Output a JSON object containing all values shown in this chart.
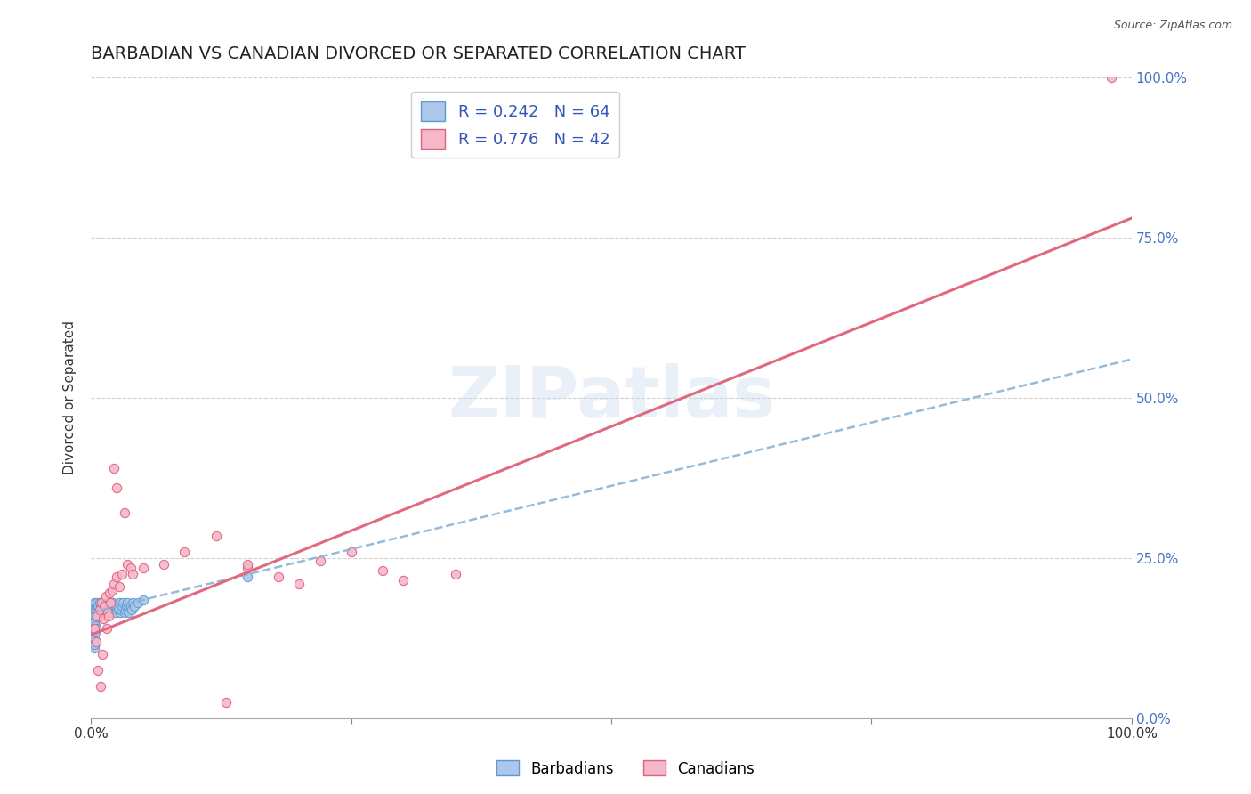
{
  "title": "BARBADIAN VS CANADIAN DIVORCED OR SEPARATED CORRELATION CHART",
  "source": "Source: ZipAtlas.com",
  "ylabel": "Divorced or Separated",
  "xlim": [
    0,
    1.0
  ],
  "ylim": [
    0,
    1.0
  ],
  "ytick_positions": [
    0.0,
    0.25,
    0.5,
    0.75,
    1.0
  ],
  "ytick_labels_right": [
    "0.0%",
    "25.0%",
    "50.0%",
    "75.0%",
    "100.0%"
  ],
  "xtick_positions": [
    0.0,
    0.25,
    0.5,
    0.75,
    1.0
  ],
  "xtick_labels": [
    "0.0%",
    "",
    "",
    "",
    "100.0%"
  ],
  "watermark": "ZIPatlas",
  "barbadian_color_fill": "#aec6e8",
  "barbadian_color_edge": "#5b9bd5",
  "canadian_color_fill": "#f4b8c8",
  "canadian_color_edge": "#e06080",
  "barbadian_line_color": "#8ab4d8",
  "canadian_line_color": "#e06880",
  "barbadian_scatter": [
    [
      0.001,
      0.17
    ],
    [
      0.002,
      0.175
    ],
    [
      0.002,
      0.165
    ],
    [
      0.003,
      0.18
    ],
    [
      0.003,
      0.16
    ],
    [
      0.004,
      0.17
    ],
    [
      0.004,
      0.155
    ],
    [
      0.005,
      0.175
    ],
    [
      0.005,
      0.165
    ],
    [
      0.006,
      0.18
    ],
    [
      0.006,
      0.16
    ],
    [
      0.007,
      0.175
    ],
    [
      0.007,
      0.165
    ],
    [
      0.008,
      0.18
    ],
    [
      0.008,
      0.16
    ],
    [
      0.009,
      0.175
    ],
    [
      0.009,
      0.165
    ],
    [
      0.01,
      0.17
    ],
    [
      0.01,
      0.18
    ],
    [
      0.011,
      0.175
    ],
    [
      0.012,
      0.17
    ],
    [
      0.013,
      0.165
    ],
    [
      0.014,
      0.175
    ],
    [
      0.015,
      0.18
    ],
    [
      0.016,
      0.17
    ],
    [
      0.017,
      0.175
    ],
    [
      0.018,
      0.165
    ],
    [
      0.019,
      0.17
    ],
    [
      0.02,
      0.175
    ],
    [
      0.021,
      0.18
    ],
    [
      0.022,
      0.17
    ],
    [
      0.023,
      0.175
    ],
    [
      0.024,
      0.165
    ],
    [
      0.025,
      0.175
    ],
    [
      0.026,
      0.17
    ],
    [
      0.027,
      0.18
    ],
    [
      0.028,
      0.165
    ],
    [
      0.029,
      0.17
    ],
    [
      0.03,
      0.175
    ],
    [
      0.031,
      0.18
    ],
    [
      0.032,
      0.165
    ],
    [
      0.033,
      0.17
    ],
    [
      0.034,
      0.175
    ],
    [
      0.035,
      0.18
    ],
    [
      0.036,
      0.17
    ],
    [
      0.037,
      0.165
    ],
    [
      0.038,
      0.175
    ],
    [
      0.039,
      0.17
    ],
    [
      0.04,
      0.18
    ],
    [
      0.042,
      0.175
    ],
    [
      0.045,
      0.18
    ],
    [
      0.05,
      0.185
    ],
    [
      0.001,
      0.13
    ],
    [
      0.002,
      0.12
    ],
    [
      0.003,
      0.125
    ],
    [
      0.004,
      0.135
    ],
    [
      0.001,
      0.145
    ],
    [
      0.002,
      0.14
    ],
    [
      0.003,
      0.15
    ],
    [
      0.004,
      0.145
    ],
    [
      0.005,
      0.14
    ],
    [
      0.003,
      0.11
    ],
    [
      0.003,
      0.115
    ],
    [
      0.15,
      0.22
    ]
  ],
  "canadian_scatter": [
    [
      0.003,
      0.14
    ],
    [
      0.005,
      0.12
    ],
    [
      0.006,
      0.16
    ],
    [
      0.007,
      0.075
    ],
    [
      0.008,
      0.17
    ],
    [
      0.009,
      0.05
    ],
    [
      0.01,
      0.18
    ],
    [
      0.011,
      0.1
    ],
    [
      0.012,
      0.155
    ],
    [
      0.013,
      0.175
    ],
    [
      0.014,
      0.19
    ],
    [
      0.015,
      0.14
    ],
    [
      0.016,
      0.165
    ],
    [
      0.017,
      0.16
    ],
    [
      0.018,
      0.195
    ],
    [
      0.019,
      0.18
    ],
    [
      0.02,
      0.2
    ],
    [
      0.022,
      0.21
    ],
    [
      0.025,
      0.22
    ],
    [
      0.027,
      0.205
    ],
    [
      0.03,
      0.225
    ],
    [
      0.032,
      0.32
    ],
    [
      0.035,
      0.24
    ],
    [
      0.038,
      0.235
    ],
    [
      0.04,
      0.225
    ],
    [
      0.05,
      0.235
    ],
    [
      0.07,
      0.24
    ],
    [
      0.09,
      0.26
    ],
    [
      0.12,
      0.285
    ],
    [
      0.15,
      0.235
    ],
    [
      0.18,
      0.22
    ],
    [
      0.22,
      0.245
    ],
    [
      0.25,
      0.26
    ],
    [
      0.28,
      0.23
    ],
    [
      0.3,
      0.215
    ],
    [
      0.35,
      0.225
    ],
    [
      0.15,
      0.24
    ],
    [
      0.2,
      0.21
    ],
    [
      0.13,
      0.025
    ],
    [
      0.025,
      0.36
    ],
    [
      0.022,
      0.39
    ],
    [
      0.98,
      1.0
    ]
  ],
  "barbadian_line_x": [
    0.0,
    1.0
  ],
  "barbadian_line_y": [
    0.165,
    0.56
  ],
  "canadian_line_x": [
    0.0,
    1.0
  ],
  "canadian_line_y": [
    0.13,
    0.78
  ],
  "background_color": "#ffffff",
  "grid_color": "#d0d0d0",
  "title_fontsize": 14,
  "axis_label_fontsize": 11,
  "tick_fontsize": 11,
  "right_tick_color": "#4472c4",
  "legend_r1": "R = 0.242   N = 64",
  "legend_r2": "R = 0.776   N = 42",
  "legend_color": "#3355bb"
}
